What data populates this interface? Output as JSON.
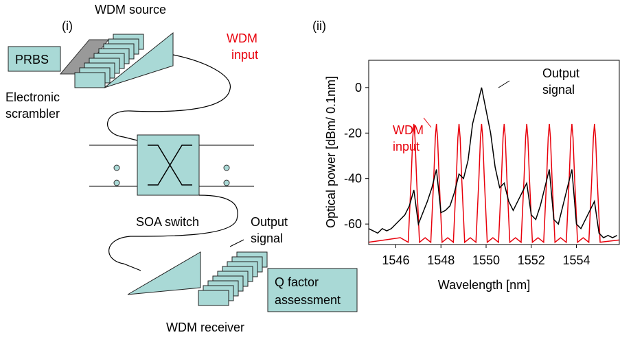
{
  "diagram": {
    "panel_label": "(i)",
    "source_title": "WDM source",
    "prbs": "PRBS",
    "scrambler": [
      "Electronic",
      "scrambler"
    ],
    "wdm_input": [
      "WDM",
      "input"
    ],
    "switch_label": "SOA switch",
    "output_signal": [
      "Output",
      "signal"
    ],
    "q_factor": [
      "Q factor",
      "assessment"
    ],
    "receiver_title": "WDM receiver"
  },
  "chart_data": {
    "type": "line",
    "panel_label": "(ii)",
    "x_label": "Wavelength [nm]",
    "y_label": "Optical power [dBm/ 0.1nm]",
    "xlim": [
      1544.8,
      1555.9
    ],
    "xticks": [
      1546,
      1548,
      1550,
      1552,
      1554
    ],
    "ylim": [
      -69,
      12
    ],
    "yticks": [
      0,
      -20,
      -40,
      -60
    ],
    "series": [
      {
        "name": "WDM input",
        "color": "#e8000b",
        "x": [
          1544.8,
          1545.5,
          1546.2,
          1546.55,
          1546.68,
          1546.75,
          1546.8,
          1546.85,
          1546.92,
          1547.05,
          1547.3,
          1547.55,
          1547.68,
          1547.75,
          1547.8,
          1547.85,
          1547.92,
          1548.05,
          1548.3,
          1548.55,
          1548.68,
          1548.75,
          1548.8,
          1548.85,
          1548.92,
          1549.05,
          1549.3,
          1549.55,
          1549.68,
          1549.75,
          1549.8,
          1549.85,
          1549.92,
          1550.05,
          1550.3,
          1550.55,
          1550.68,
          1550.75,
          1550.8,
          1550.85,
          1550.92,
          1551.05,
          1551.3,
          1551.55,
          1551.68,
          1551.75,
          1551.8,
          1551.85,
          1551.92,
          1552.05,
          1552.3,
          1552.55,
          1552.68,
          1552.75,
          1552.8,
          1552.85,
          1552.92,
          1553.05,
          1553.3,
          1553.55,
          1553.68,
          1553.75,
          1553.8,
          1553.85,
          1553.92,
          1554.05,
          1554.3,
          1554.55,
          1554.68,
          1554.75,
          1554.8,
          1554.85,
          1554.92,
          1555.05,
          1555.9
        ],
        "values": [
          -68,
          -67,
          -66,
          -68,
          -40,
          -22,
          -16,
          -22,
          -40,
          -68,
          -66,
          -68,
          -40,
          -22,
          -16,
          -22,
          -40,
          -68,
          -66,
          -68,
          -40,
          -22,
          -16,
          -22,
          -40,
          -68,
          -66,
          -68,
          -40,
          -22,
          -16,
          -22,
          -40,
          -68,
          -66,
          -68,
          -40,
          -22,
          -16,
          -22,
          -40,
          -68,
          -66,
          -68,
          -40,
          -22,
          -16,
          -22,
          -40,
          -68,
          -66,
          -68,
          -40,
          -22,
          -16,
          -22,
          -40,
          -68,
          -66,
          -68,
          -40,
          -22,
          -16,
          -22,
          -40,
          -68,
          -66,
          -68,
          -40,
          -22,
          -16,
          -22,
          -40,
          -68,
          -67
        ]
      },
      {
        "name": "Output signal",
        "color": "#000000",
        "x": [
          1544.8,
          1545.0,
          1545.2,
          1545.4,
          1545.6,
          1545.8,
          1546.0,
          1546.2,
          1546.4,
          1546.6,
          1546.8,
          1547.0,
          1547.2,
          1547.4,
          1547.6,
          1547.8,
          1548.0,
          1548.2,
          1548.4,
          1548.6,
          1548.8,
          1549.0,
          1549.2,
          1549.4,
          1549.6,
          1549.8,
          1550.0,
          1550.2,
          1550.4,
          1550.6,
          1550.8,
          1551.0,
          1551.2,
          1551.4,
          1551.6,
          1551.8,
          1552.0,
          1552.2,
          1552.4,
          1552.6,
          1552.8,
          1553.0,
          1553.2,
          1553.4,
          1553.6,
          1553.8,
          1554.0,
          1554.2,
          1554.4,
          1554.6,
          1554.8,
          1555.0,
          1555.2,
          1555.4,
          1555.6,
          1555.8
        ],
        "values": [
          -62,
          -63,
          -64,
          -62,
          -63,
          -62,
          -60,
          -58,
          -56,
          -52,
          -45,
          -60,
          -55,
          -50,
          -44,
          -36,
          -55,
          -54,
          -52,
          -46,
          -38,
          -40,
          -32,
          -16,
          -8,
          0,
          -10,
          -20,
          -35,
          -44,
          -42,
          -50,
          -54,
          -50,
          -46,
          -42,
          -56,
          -58,
          -52,
          -44,
          -36,
          -58,
          -60,
          -52,
          -44,
          -36,
          -60,
          -62,
          -58,
          -54,
          -50,
          -64,
          -66,
          -65,
          -66,
          -65
        ]
      }
    ]
  }
}
